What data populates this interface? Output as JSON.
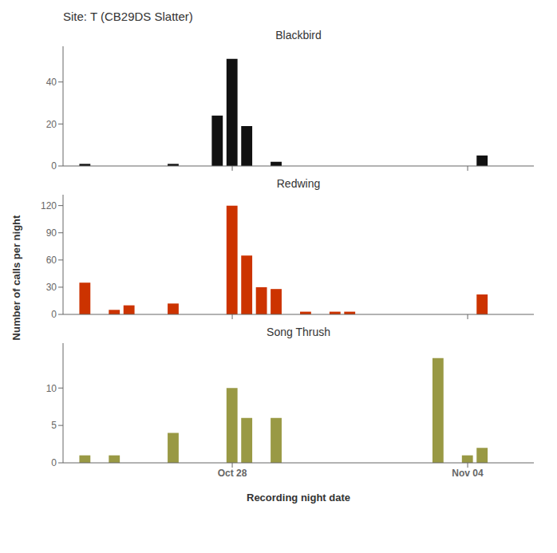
{
  "title": "Site: T (CB29DS Slatter)",
  "ylabel": "Number of calls per night",
  "chart_data": [
    {
      "type": "bar",
      "title": "Blackbird",
      "color": "#111111",
      "x": [
        17,
        18,
        19,
        20,
        21,
        22,
        23,
        24,
        25,
        26,
        27,
        28,
        29,
        30,
        31,
        32,
        33,
        34,
        35,
        36,
        37,
        38,
        39,
        40,
        41,
        42,
        43,
        44,
        45,
        46,
        47,
        48
      ],
      "values": [
        0,
        1,
        0,
        0,
        0,
        0,
        0,
        1,
        0,
        0,
        24,
        51,
        19,
        0,
        2,
        0,
        0,
        0,
        0,
        0,
        0,
        0,
        0,
        0,
        0,
        0,
        0,
        0,
        5,
        0,
        0,
        0
      ],
      "xlim": [
        16.5,
        48.5
      ],
      "xticks": [
        {
          "value": 28,
          "label": "Oct 28"
        },
        {
          "value": 44,
          "label": "Nov 04"
        }
      ],
      "ylim": [
        0,
        57
      ],
      "yticks": [
        0,
        20,
        40
      ],
      "tick_labels": "y"
    },
    {
      "type": "bar",
      "title": "Redwing",
      "color": "#CC3300",
      "x": [
        17,
        18,
        19,
        20,
        21,
        22,
        23,
        24,
        25,
        26,
        27,
        28,
        29,
        30,
        31,
        32,
        33,
        34,
        35,
        36,
        37,
        38,
        39,
        40,
        41,
        42,
        43,
        44,
        45,
        46,
        47,
        48
      ],
      "values": [
        0,
        35,
        0,
        5,
        10,
        0,
        0,
        12,
        0,
        0,
        0,
        120,
        65,
        30,
        28,
        0,
        3,
        0,
        3,
        3,
        0,
        0,
        0,
        0,
        0,
        0,
        0,
        0,
        22,
        0,
        0,
        0
      ],
      "xlim": [
        16.5,
        48.5
      ],
      "xticks": [
        {
          "value": 28,
          "label": "Oct 28"
        },
        {
          "value": 44,
          "label": "Nov 04"
        }
      ],
      "ylim": [
        0,
        132
      ],
      "yticks": [
        0,
        30,
        60,
        90,
        120
      ],
      "tick_labels": "y"
    },
    {
      "type": "bar",
      "title": "Song Thrush",
      "color": "#999944",
      "xlabel": "Recording night date",
      "x": [
        17,
        18,
        19,
        20,
        21,
        22,
        23,
        24,
        25,
        26,
        27,
        28,
        29,
        30,
        31,
        32,
        33,
        34,
        35,
        36,
        37,
        38,
        39,
        40,
        41,
        42,
        43,
        44,
        45,
        46,
        47,
        48
      ],
      "values": [
        0,
        1,
        0,
        1,
        0,
        0,
        0,
        4,
        0,
        0,
        0,
        10,
        6,
        0,
        6,
        0,
        0,
        0,
        0,
        0,
        0,
        0,
        0,
        0,
        0,
        14,
        0,
        1,
        2,
        0,
        0,
        0
      ],
      "xlim": [
        16.5,
        48.5
      ],
      "xticks": [
        {
          "value": 28,
          "label": "Oct 28"
        },
        {
          "value": 44,
          "label": "Nov 04"
        }
      ],
      "ylim": [
        0,
        16
      ],
      "yticks": [
        0,
        5,
        10
      ]
    }
  ]
}
